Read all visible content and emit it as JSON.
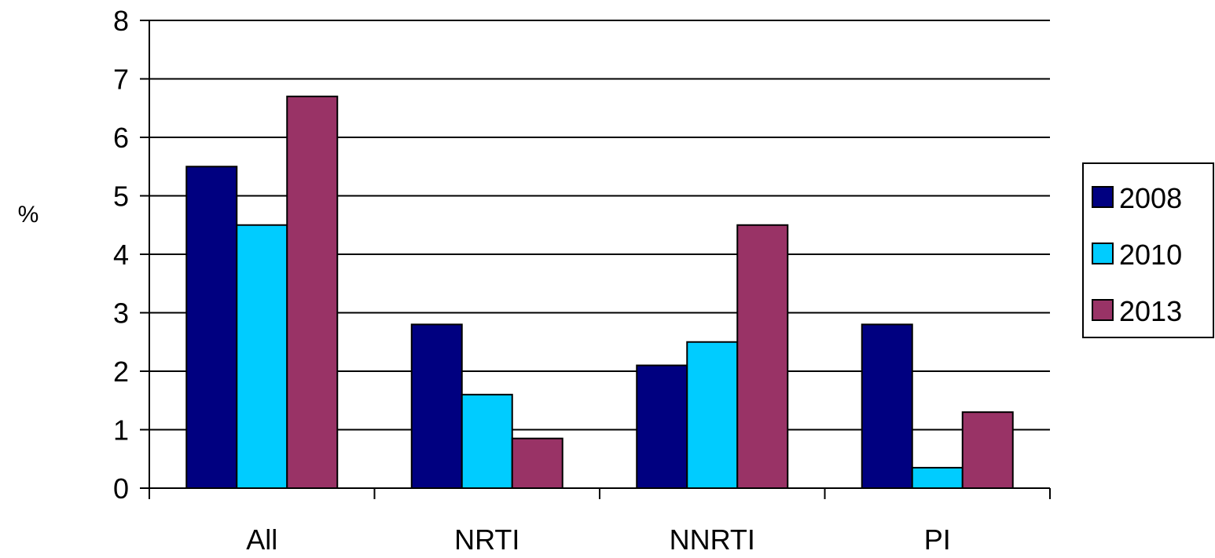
{
  "chart_data": {
    "type": "bar",
    "title": "",
    "xlabel": "",
    "ylabel": "%",
    "ylim": [
      0,
      8
    ],
    "yticks": [
      0,
      1,
      2,
      3,
      4,
      5,
      6,
      7,
      8
    ],
    "grid": true,
    "legend_position": "right",
    "categories": [
      "All",
      "NRTI",
      "NNRTI",
      "PI"
    ],
    "series": [
      {
        "name": "2008",
        "color": "#000080",
        "values": [
          5.5,
          2.8,
          2.1,
          2.8
        ]
      },
      {
        "name": "2010",
        "color": "#00CCFF",
        "values": [
          4.5,
          1.6,
          2.5,
          0.35
        ]
      },
      {
        "name": "2013",
        "color": "#993366",
        "values": [
          6.7,
          0.85,
          4.5,
          1.3
        ]
      }
    ]
  }
}
